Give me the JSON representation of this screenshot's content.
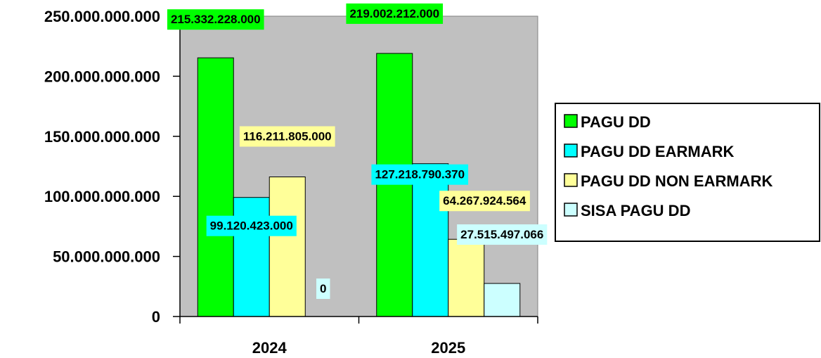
{
  "chart_data": {
    "type": "bar",
    "categories": [
      "2024",
      "2025"
    ],
    "series": [
      {
        "name": "PAGU DD",
        "values": [
          215332228000,
          219002212000
        ],
        "labels": [
          "215.332.228.000",
          "219.002.212.000"
        ],
        "color": "#00ff00"
      },
      {
        "name": "PAGU DD EARMARK",
        "values": [
          99120423000,
          127218790370
        ],
        "labels": [
          "99.120.423.000",
          "127.218.790.370"
        ],
        "color": "#00ffff"
      },
      {
        "name": "PAGU DD NON EARMARK",
        "values": [
          116211805000,
          64267924564
        ],
        "labels": [
          "116.211.805.000",
          "64.267.924.564"
        ],
        "color": "#ffff99"
      },
      {
        "name": "SISA PAGU DD",
        "values": [
          0,
          27515497066
        ],
        "labels": [
          "0",
          "27.515.497.066"
        ],
        "color": "#ccffff"
      }
    ],
    "ylim": [
      0,
      250000000000
    ],
    "yticks": [
      0,
      50000000000,
      100000000000,
      150000000000,
      200000000000,
      250000000000
    ],
    "ytick_labels": [
      "0",
      "50.000.000.000",
      "100.000.000.000",
      "150.000.000.000",
      "200.000.000.000",
      "250.000.000.000"
    ],
    "plot_background": "#c0c0c0",
    "grid": false,
    "legend_position": "right"
  }
}
